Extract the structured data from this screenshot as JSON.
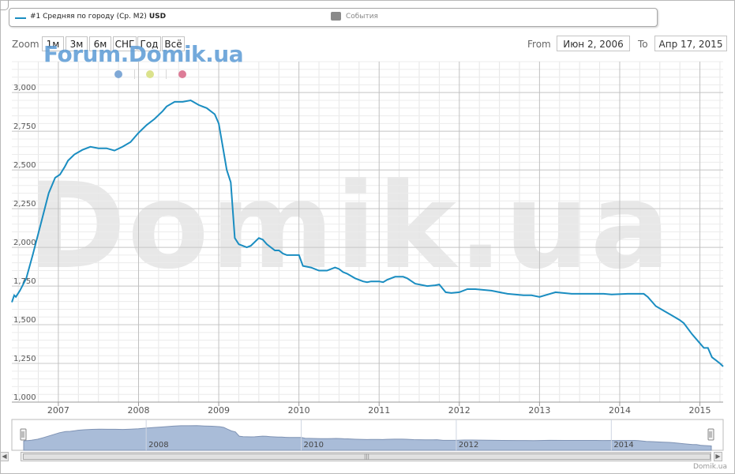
{
  "legend": {
    "series_label": "#1 Средняя по городу (Ср. М2)",
    "series_unit": "USD",
    "events_label": "События"
  },
  "brand": "Forum.Domik.ua",
  "watermark": "Domik.ua",
  "credit": "Domik.ua",
  "range_selector": {
    "zoom_label": "Zoom",
    "buttons": [
      "1м",
      "3м",
      "6м",
      "СНГ",
      "Год",
      "Всё"
    ],
    "from_label": "From",
    "from_value": "Июн 2, 2006",
    "to_label": "To",
    "to_value": "Апр 17, 2015"
  },
  "colors": {
    "line": "#1a8dc1",
    "navigator_fill": "#a9bcd8",
    "dot_blue": "#7fa8d6",
    "dot_yellow": "#dbe28c",
    "dot_pink": "#dd7c97"
  },
  "navigator_labels": [
    "2008",
    "2010",
    "2012",
    "2014"
  ],
  "chart_data": {
    "type": "line",
    "ylim": [
      1000,
      3200
    ],
    "xlim": [
      2006.42,
      2015.29
    ],
    "y_ticks": [
      1000,
      1250,
      1500,
      1750,
      2000,
      2250,
      2500,
      2750,
      3000
    ],
    "y_tick_labels": [
      "1,000",
      "1,250",
      "1,500",
      "1,750",
      "2,000",
      "2,250",
      "2,500",
      "2,750",
      "3,000"
    ],
    "x_ticks": [
      2007,
      2008,
      2009,
      2010,
      2011,
      2012,
      2013,
      2014,
      2015
    ],
    "x_tick_labels": [
      "2007",
      "2008",
      "2009",
      "2010",
      "2011",
      "2012",
      "2013",
      "2014",
      "2015"
    ],
    "grid": true,
    "series": [
      {
        "x": [
          2006.42,
          2006.45,
          2006.47,
          2006.52,
          2006.6,
          2006.68,
          2006.78,
          2006.88,
          2006.96,
          2007.02,
          2007.08,
          2007.12,
          2007.2,
          2007.3,
          2007.4,
          2007.5,
          2007.6,
          2007.7,
          2007.8,
          2007.9,
          2008.0,
          2008.1,
          2008.2,
          2008.3,
          2008.35,
          2008.45,
          2008.55,
          2008.65,
          2008.75,
          2008.85,
          2008.95,
          2009.0,
          2009.05,
          2009.1,
          2009.15,
          2009.2,
          2009.25,
          2009.35,
          2009.4,
          2009.5,
          2009.55,
          2009.6,
          2009.7,
          2009.75,
          2009.8,
          2009.85,
          2010.0,
          2010.05,
          2010.15,
          2010.25,
          2010.35,
          2010.45,
          2010.5,
          2010.55,
          2010.6,
          2010.7,
          2010.8,
          2010.85,
          2010.9,
          2011.0,
          2011.05,
          2011.1,
          2011.2,
          2011.3,
          2011.35,
          2011.45,
          2011.6,
          2011.7,
          2011.75,
          2011.83,
          2011.9,
          2012.0,
          2012.1,
          2012.2,
          2012.4,
          2012.6,
          2012.8,
          2012.9,
          2013.0,
          2013.2,
          2013.4,
          2013.6,
          2013.8,
          2013.9,
          2014.1,
          2014.2,
          2014.3,
          2014.35,
          2014.45,
          2014.55,
          2014.65,
          2014.75,
          2014.8,
          2014.9,
          2014.95,
          2015.05,
          2015.1,
          2015.15,
          2015.2,
          2015.25,
          2015.29
        ],
        "values": [
          1645,
          1690,
          1680,
          1720,
          1800,
          1950,
          2150,
          2350,
          2450,
          2470,
          2520,
          2560,
          2600,
          2630,
          2650,
          2640,
          2640,
          2625,
          2650,
          2680,
          2740,
          2790,
          2830,
          2880,
          2910,
          2940,
          2940,
          2950,
          2920,
          2900,
          2860,
          2800,
          2650,
          2500,
          2420,
          2060,
          2020,
          2000,
          2010,
          2060,
          2050,
          2020,
          1980,
          1980,
          1960,
          1950,
          1950,
          1880,
          1870,
          1850,
          1850,
          1870,
          1860,
          1840,
          1830,
          1800,
          1780,
          1775,
          1780,
          1780,
          1775,
          1790,
          1810,
          1810,
          1800,
          1765,
          1750,
          1755,
          1760,
          1710,
          1705,
          1710,
          1730,
          1730,
          1720,
          1700,
          1690,
          1690,
          1680,
          1710,
          1700,
          1700,
          1700,
          1695,
          1700,
          1700,
          1700,
          1680,
          1620,
          1590,
          1560,
          1530,
          1510,
          1440,
          1410,
          1350,
          1350,
          1290,
          1270,
          1250,
          1230
        ]
      }
    ]
  }
}
